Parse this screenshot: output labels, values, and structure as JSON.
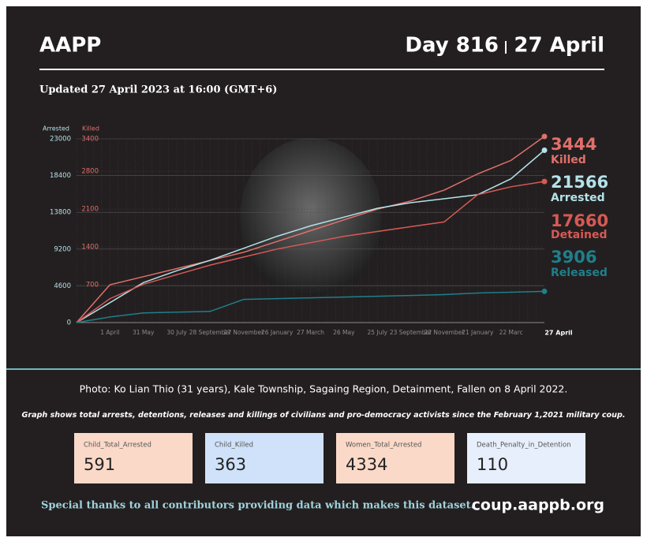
{
  "header": {
    "title": "AAPP",
    "day": "Day 816",
    "date": "27 April",
    "subtitle": "Updated 27 April 2023 at 16:00 (GMT+6)"
  },
  "chart_data": {
    "type": "line",
    "ylabel": "Arrested",
    "y2label": "Killed",
    "categories": [
      null,
      "1 April",
      "31 May",
      "30 July",
      "28 September",
      "27 November",
      "26 January",
      "27 March",
      "26 May",
      "25 July",
      "23 September",
      "22 November",
      "21 January",
      "22 Marc",
      "27 April"
    ],
    "ylim": [
      0,
      23000
    ],
    "yticks": [
      0,
      4600,
      9200,
      13800,
      18400,
      23000
    ],
    "y2lim": [
      0,
      3400
    ],
    "y2ticks": [
      700,
      1400,
      2100,
      2800,
      3400
    ],
    "grid": true,
    "series": [
      {
        "name": "Killed",
        "color": "#e0706b",
        "axis": "y2",
        "values": [
          0,
          700,
          850,
          1000,
          1150,
          1300,
          1500,
          1700,
          1900,
          2100,
          2250,
          2450,
          2750,
          3000,
          3444
        ]
      },
      {
        "name": "Arrested",
        "color": "#b4e2e8",
        "values": [
          0,
          2500,
          5000,
          6500,
          7800,
          9300,
          10800,
          12100,
          13200,
          14300,
          15000,
          15500,
          16000,
          18000,
          21566
        ]
      },
      {
        "name": "Detained",
        "color": "#d65a55",
        "values": [
          0,
          3000,
          4800,
          6000,
          7200,
          8200,
          9200,
          10000,
          10800,
          11400,
          12000,
          12600,
          16000,
          17000,
          17660
        ]
      },
      {
        "name": "Released",
        "color": "#1f7f8a",
        "values": [
          0,
          700,
          1200,
          1300,
          1400,
          2900,
          3000,
          3100,
          3200,
          3300,
          3400,
          3500,
          3700,
          3800,
          3906
        ]
      }
    ]
  },
  "caption": "Photo: Ko Lian Thio (31 years), Kale Township, Sagaing Region, Detainment,  Fallen on 8 April 2022.",
  "note": "Graph shows total arrests, detentions, releases and killings of civilians and pro-democracy activists since the February 1,2021 military coup.",
  "cards": [
    {
      "name": "Child_Total_Arrested",
      "value": "591",
      "color": "#fbd9c9"
    },
    {
      "name": "Child_Killed",
      "value": "363",
      "color": "#cfe2f9"
    },
    {
      "name": "Women_Total_Arrested",
      "value": "4334",
      "color": "#fbd9c9"
    },
    {
      "name": "Death_Penalty_in_Detention",
      "value": "110",
      "color": "#e6effb"
    }
  ],
  "footer": {
    "thanks": "Special thanks to all contributors providing data which makes this dataset.",
    "url": "coup.aappb.org"
  }
}
